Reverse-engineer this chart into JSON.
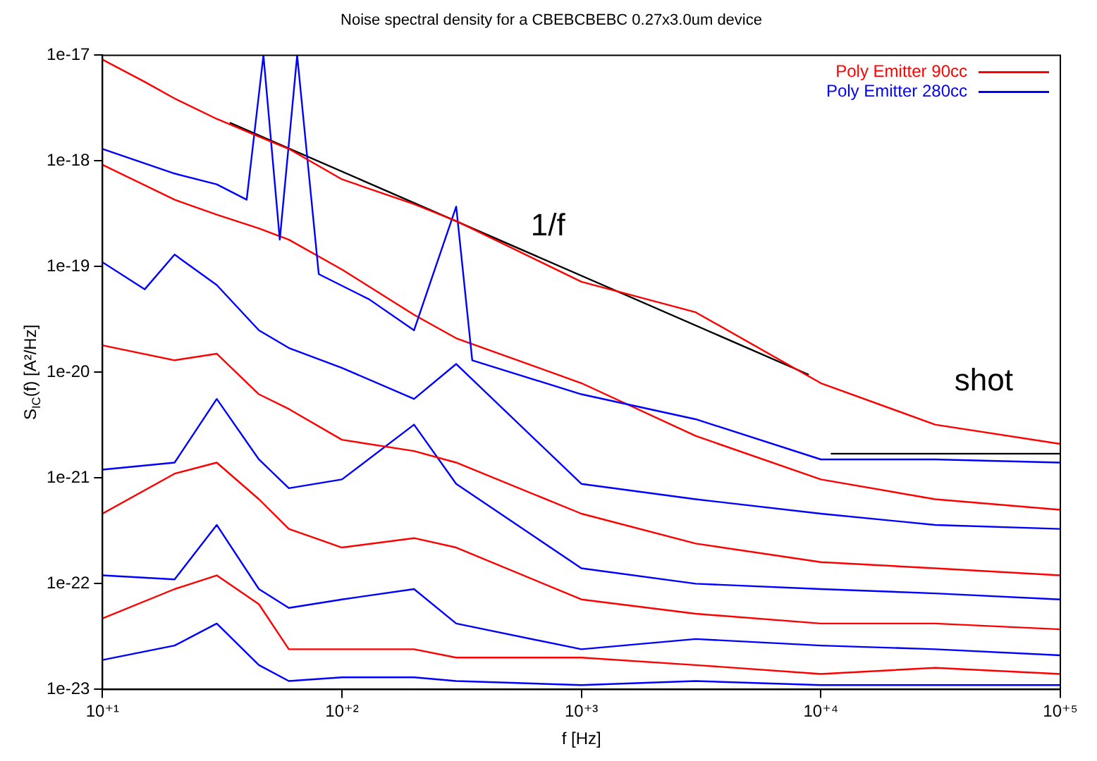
{
  "chart_data": {
    "type": "line",
    "title": "Noise spectral density for a CBEBCBEBC 0.27x3.0um device",
    "xlabel": "f [Hz]",
    "ylabel": "S$_{IC}$(f) [A²/Hz]",
    "log": "xy",
    "xlim": [
      10,
      100000
    ],
    "ylim": [
      1e-23,
      1e-17
    ],
    "xticks": [
      {
        "value": 10,
        "label": "10⁺¹"
      },
      {
        "value": 100,
        "label": "10⁺²"
      },
      {
        "value": 1000,
        "label": "10⁺³"
      },
      {
        "value": 10000,
        "label": "10⁺⁴"
      },
      {
        "value": 100000,
        "label": "10⁺⁵"
      }
    ],
    "yticks": [
      {
        "value": 1e-23,
        "label": "1e-23"
      },
      {
        "value": 1e-22,
        "label": "1e-22"
      },
      {
        "value": 1e-21,
        "label": "1e-21"
      },
      {
        "value": 1e-20,
        "label": "1e-20"
      },
      {
        "value": 1e-19,
        "label": "1e-19"
      },
      {
        "value": 1e-18,
        "label": "1e-18"
      },
      {
        "value": 1e-17,
        "label": "1e-17"
      }
    ],
    "legend": "top right",
    "series": [
      {
        "name": "Poly Emitter 90cc",
        "color": "#ff0000",
        "x": [
          10,
          15,
          20,
          30,
          45,
          60,
          100,
          200,
          300,
          1000,
          3000,
          10000,
          30000,
          100000
        ],
        "values": [
          9.1e-18,
          5.6e-18,
          3.9e-18,
          2.5e-18,
          1.7e-18,
          1.3e-18,
          6.7e-19,
          3.9e-19,
          2.7e-19,
          7.2e-20,
          3.7e-20,
          7.9e-21,
          3.2e-21,
          2.1e-21
        ]
      },
      {
        "name": "Poly Emitter 280cc",
        "color": "#0000ff",
        "x": [
          10,
          20,
          30,
          40,
          47,
          55,
          65,
          80,
          130,
          200,
          300,
          350,
          1000,
          3000,
          10000,
          30000,
          100000
        ],
        "values": [
          1.3e-18,
          7.6e-19,
          6e-19,
          4.3e-19,
          1e-17,
          1.8e-19,
          1e-17,
          8.5e-20,
          4.9e-20,
          2.5e-20,
          3.7e-19,
          1.3e-20,
          6.2e-21,
          3.6e-21,
          1.5e-21,
          1.5e-21,
          1.4e-21
        ]
      },
      {
        "color": "#ff0000",
        "x": [
          10,
          20,
          30,
          45,
          60,
          100,
          200,
          300,
          1000,
          3000,
          10000,
          30000,
          100000
        ],
        "values": [
          9.2e-19,
          4.3e-19,
          3.1e-19,
          2.3e-19,
          1.8e-19,
          9.4e-20,
          3.5e-20,
          2.1e-20,
          7.9e-21,
          2.5e-21,
          9.7e-22,
          6.3e-22,
          5e-22
        ]
      },
      {
        "color": "#0000ff",
        "x": [
          10,
          15,
          20,
          30,
          45,
          60,
          100,
          200,
          300,
          1000,
          3000,
          10000,
          30000,
          100000
        ],
        "values": [
          1.1e-19,
          6.1e-20,
          1.3e-19,
          6.7e-20,
          2.5e-20,
          1.7e-20,
          1.1e-20,
          5.6e-21,
          1.2e-20,
          8.8e-22,
          6.3e-22,
          4.6e-22,
          3.6e-22,
          3.3e-22
        ]
      },
      {
        "color": "#ff0000",
        "x": [
          10,
          20,
          30,
          45,
          60,
          100,
          200,
          300,
          1000,
          3000,
          10000,
          30000,
          100000
        ],
        "values": [
          1.8e-20,
          1.3e-20,
          1.5e-20,
          6.2e-21,
          4.5e-21,
          2.3e-21,
          1.8e-21,
          1.4e-21,
          4.6e-22,
          2.4e-22,
          1.6e-22,
          1.4e-22,
          1.2e-22
        ]
      },
      {
        "color": "#0000ff",
        "x": [
          10,
          20,
          30,
          45,
          60,
          100,
          200,
          300,
          1000,
          3000,
          10000,
          30000,
          100000
        ],
        "values": [
          1.2e-21,
          1.4e-21,
          5.6e-21,
          1.5e-21,
          8e-22,
          9.7e-22,
          3.2e-21,
          8.8e-22,
          1.4e-22,
          1e-22,
          8.9e-23,
          8.1e-23,
          7.1e-23
        ]
      },
      {
        "color": "#ff0000",
        "x": [
          10,
          20,
          30,
          45,
          60,
          100,
          200,
          300,
          1000,
          3000,
          10000,
          30000,
          100000
        ],
        "values": [
          4.6e-22,
          1.1e-21,
          1.4e-21,
          6.3e-22,
          3.3e-22,
          2.2e-22,
          2.7e-22,
          2.2e-22,
          7.1e-23,
          5.2e-23,
          4.2e-23,
          4.2e-23,
          3.7e-23
        ]
      },
      {
        "color": "#0000ff",
        "x": [
          10,
          20,
          30,
          45,
          60,
          100,
          200,
          300,
          1000,
          3000,
          10000,
          30000,
          100000
        ],
        "values": [
          1.2e-22,
          1.1e-22,
          3.6e-22,
          8.9e-23,
          5.9e-23,
          7.1e-23,
          8.9e-23,
          4.2e-23,
          2.4e-23,
          3e-23,
          2.6e-23,
          2.4e-23,
          2.1e-23
        ]
      },
      {
        "color": "#ff0000",
        "x": [
          10,
          20,
          30,
          45,
          60,
          100,
          200,
          300,
          1000,
          3000,
          10000,
          30000,
          100000
        ],
        "values": [
          4.7e-23,
          8.9e-23,
          1.2e-22,
          6.4e-23,
          2.4e-23,
          2.4e-23,
          2.4e-23,
          2e-23,
          2e-23,
          1.7e-23,
          1.4e-23,
          1.6e-23,
          1.4e-23
        ]
      },
      {
        "color": "#0000ff",
        "x": [
          10,
          20,
          30,
          45,
          60,
          100,
          200,
          300,
          1000,
          3000,
          10000,
          30000,
          100000
        ],
        "values": [
          1.9e-23,
          2.6e-23,
          4.2e-23,
          1.7e-23,
          1.2e-23,
          1.3e-23,
          1.3e-23,
          1.2e-23,
          1.1e-23,
          1.2e-23,
          1.1e-23,
          1.1e-23,
          1.1e-23
        ]
      },
      {
        "color": "#000000",
        "x": [
          34,
          8900
        ],
        "values": [
          2.3e-18,
          9.5e-21
        ]
      },
      {
        "color": "#000000",
        "x": [
          11000,
          100000
        ],
        "values": [
          1.7e-21,
          1.7e-21
        ]
      }
    ],
    "annotations": [
      "1/f",
      "shot"
    ]
  }
}
